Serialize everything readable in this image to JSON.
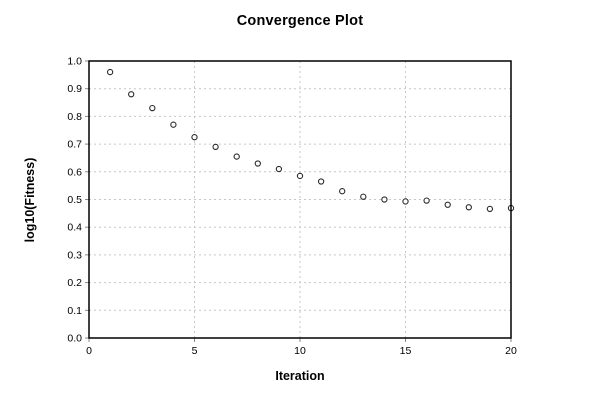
{
  "chart_data": {
    "type": "scatter",
    "title": "Convergence Plot",
    "xlabel": "Iteration",
    "ylabel": "log10(Fitness)",
    "x": [
      1,
      2,
      3,
      4,
      5,
      6,
      7,
      8,
      9,
      10,
      11,
      12,
      13,
      14,
      15,
      16,
      17,
      18,
      19,
      20
    ],
    "y": [
      0.96,
      0.88,
      0.83,
      0.77,
      0.725,
      0.69,
      0.655,
      0.63,
      0.61,
      0.585,
      0.565,
      0.53,
      0.51,
      0.5,
      0.493,
      0.496,
      0.481,
      0.472,
      0.466,
      0.469
    ],
    "xlim": [
      0,
      20
    ],
    "ylim": [
      0,
      1
    ],
    "x_ticks": [
      0,
      5,
      10,
      15,
      20
    ],
    "x_tick_labels": [
      "0",
      "5",
      "10",
      "15",
      "20"
    ],
    "y_ticks": [
      0,
      0.1,
      0.2,
      0.3,
      0.4,
      0.5,
      0.6,
      0.7,
      0.8,
      0.9,
      1.0
    ],
    "y_tick_labels": [
      "0.0",
      "0.1",
      "0.2",
      "0.3",
      "0.4",
      "0.5",
      "0.6",
      "0.7",
      "0.8",
      "0.9",
      "1.0"
    ],
    "grid": true,
    "legend": "none",
    "marker": "open-circle",
    "colors": {
      "marker_stroke": "#2a2a2a",
      "marker_fill": "#ffffff",
      "grid": "#c6c6c6",
      "axis_border": "#000000",
      "tick": "#8a8a8a",
      "text": "#000000"
    }
  }
}
